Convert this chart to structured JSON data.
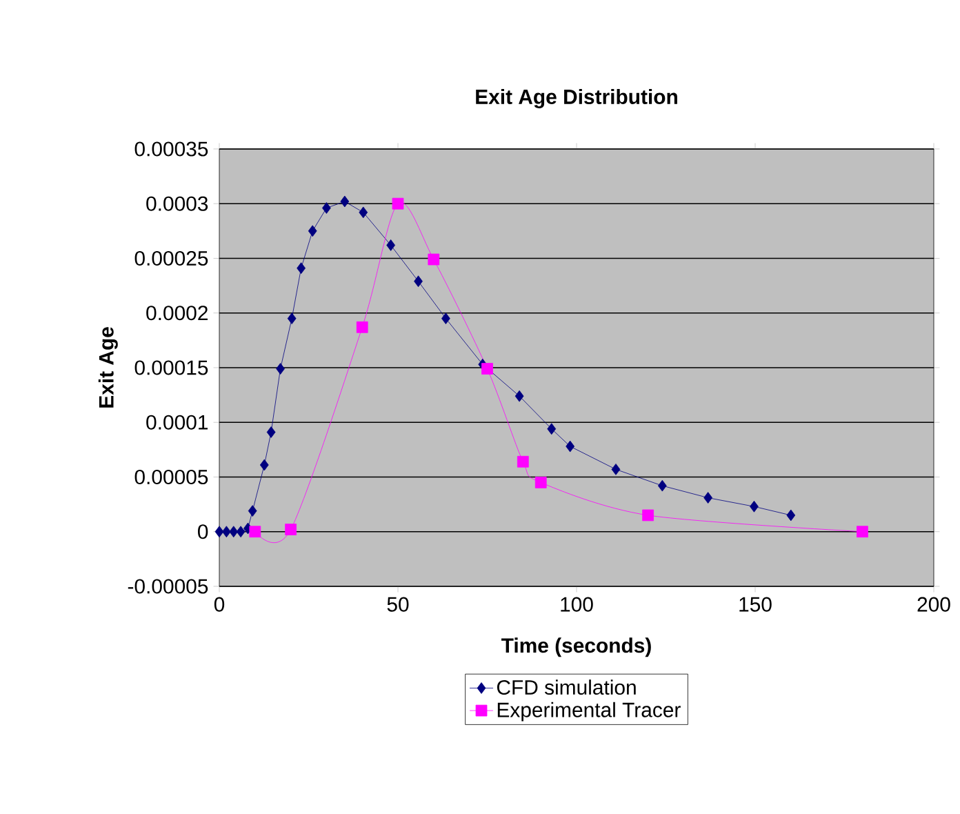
{
  "chart_data": {
    "type": "line",
    "title": "Exit Age Distribution",
    "xlabel": "Time (seconds)",
    "ylabel": "Exit Age",
    "xlim": [
      0,
      200
    ],
    "xticks": [
      0,
      50,
      100,
      150,
      200
    ],
    "ylim": [
      -5e-05,
      0.00035
    ],
    "yticks": [
      {
        "value": -5e-05,
        "label": "-0.00005"
      },
      0,
      {
        "value": 5e-05,
        "label": "0.00005"
      },
      {
        "value": 0.0001,
        "label": "0.0001"
      },
      {
        "value": 0.00015,
        "label": "0.00015"
      },
      {
        "value": 0.0002,
        "label": "0.0002"
      },
      {
        "value": 0.00025,
        "label": "0.00025"
      },
      {
        "value": 0.0003,
        "label": "0.0003"
      },
      {
        "value": 0.00035,
        "label": "0.00035"
      }
    ],
    "grid": "y",
    "legend": "bottom",
    "series": [
      {
        "name": "CFD simulation",
        "color": "#000080",
        "marker": "diamond",
        "x": [
          0,
          2,
          4,
          6,
          8,
          9.3,
          12.6,
          14.5,
          17.1,
          20.3,
          22.9,
          26.1,
          30,
          35.1,
          40.3,
          48,
          55.7,
          63.4,
          73.7,
          84,
          93,
          98.2,
          111,
          124,
          136.8,
          149.7,
          160
        ],
        "values": [
          0,
          0,
          0,
          0,
          3e-06,
          1.9e-05,
          6.1e-05,
          9.1e-05,
          0.000149,
          0.000195,
          0.000241,
          0.000275,
          0.000296,
          0.000302,
          0.000292,
          0.000262,
          0.000229,
          0.000195,
          0.000153,
          0.000124,
          9.4e-05,
          7.8e-05,
          5.7e-05,
          4.2e-05,
          3.1e-05,
          2.3e-05,
          1.5e-05
        ]
      },
      {
        "name": "Experimental Tracer",
        "color": "#ff00ff",
        "marker": "square",
        "x": [
          10,
          20,
          40,
          50,
          60,
          75,
          85,
          90,
          120,
          180
        ],
        "values": [
          0,
          2e-06,
          0.000187,
          0.0003,
          0.000249,
          0.000149,
          6.4e-05,
          4.5e-05,
          1.5e-05,
          0
        ]
      }
    ]
  }
}
